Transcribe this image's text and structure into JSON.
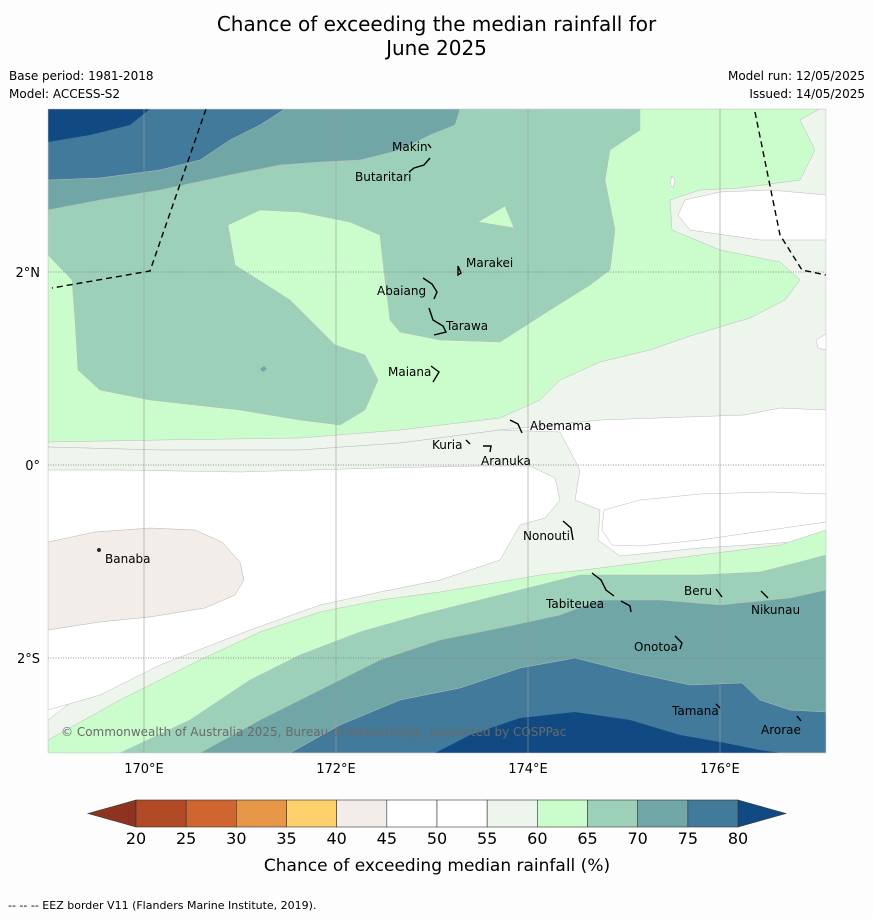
{
  "title_line1": "Chance of exceeding the median rainfall for",
  "title_line2": "June 2025",
  "base_period": "Base period: 1981-2018",
  "model": "Model: ACCESS-S2",
  "model_run": "Model run: 12/05/2025",
  "issued": "Issued: 14/05/2025",
  "copyright": "© Commonwealth of Australia 2025, Bureau of Meteorology, supported by COSPPac",
  "footer": "-- -- -- EEZ border V11 (Flanders Marine Institute, 2019).",
  "lon_labels": [
    "170°E",
    "172°E",
    "174°E",
    "176°E"
  ],
  "lat_labels": [
    "2°N",
    "0°",
    "2°S"
  ],
  "places": [
    "Makin",
    "Butaritari",
    "Marakei",
    "Abaiang",
    "Tarawa",
    "Maiana",
    "Abemama",
    "Kuria",
    "Aranuka",
    "Nonouti",
    "Banaba",
    "Tabiteuea",
    "Beru",
    "Nikunau",
    "Onotoa",
    "Tamana",
    "Arorae"
  ],
  "colorbar": {
    "label": "Chance of exceeding median rainfall (%)",
    "ticks": [
      "20",
      "25",
      "30",
      "35",
      "40",
      "45",
      "50",
      "55",
      "60",
      "65",
      "70",
      "75",
      "80"
    ],
    "colors": [
      "#b24a26",
      "#cf6632",
      "#e59647",
      "#fdd06c",
      "#f2ede8",
      "#ffffff",
      "#ffffff",
      "#edf5ec",
      "#cbfccb",
      "#9dd0b9",
      "#71a6a6",
      "#417a9a"
    ],
    "under_color": "#8d3320",
    "over_color": "#114a82"
  }
}
